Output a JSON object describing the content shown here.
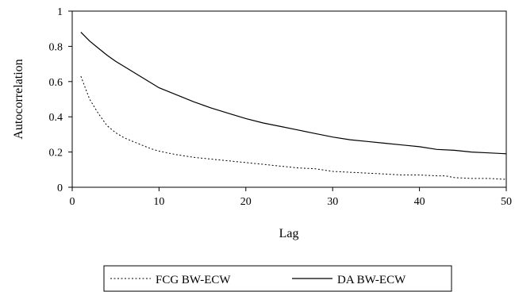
{
  "chart_data": {
    "type": "line",
    "title": "",
    "xlabel": "Lag",
    "ylabel": "Autocorrelation",
    "xlim": [
      0,
      50
    ],
    "ylim": [
      0,
      1
    ],
    "x_ticks": [
      "0",
      "10",
      "20",
      "30",
      "40",
      "50"
    ],
    "y_ticks": [
      "0",
      "0.2",
      "0.4",
      "0.6",
      "0.8",
      "1"
    ],
    "grid": false,
    "legend_position": "bottom",
    "series": [
      {
        "name": "FCG BW-ECW",
        "style": "dotted",
        "color": "#000000",
        "x": [
          1,
          2,
          3,
          4,
          5,
          6,
          7,
          8,
          9,
          10,
          12,
          14,
          16,
          18,
          20,
          22,
          24,
          26,
          28,
          30,
          32,
          34,
          36,
          38,
          40,
          42,
          43,
          44,
          46,
          48,
          50
        ],
        "y": [
          0.63,
          0.5,
          0.42,
          0.35,
          0.31,
          0.28,
          0.26,
          0.24,
          0.22,
          0.205,
          0.185,
          0.17,
          0.16,
          0.15,
          0.14,
          0.13,
          0.12,
          0.11,
          0.105,
          0.09,
          0.085,
          0.08,
          0.075,
          0.07,
          0.07,
          0.065,
          0.065,
          0.055,
          0.05,
          0.05,
          0.045
        ]
      },
      {
        "name": "DA BW-ECW",
        "style": "solid",
        "color": "#000000",
        "x": [
          1,
          2,
          3,
          4,
          5,
          6,
          8,
          10,
          12,
          14,
          16,
          18,
          20,
          22,
          24,
          26,
          28,
          30,
          32,
          34,
          36,
          38,
          40,
          42,
          44,
          46,
          48,
          50
        ],
        "y": [
          0.88,
          0.83,
          0.79,
          0.75,
          0.715,
          0.685,
          0.625,
          0.565,
          0.525,
          0.485,
          0.45,
          0.42,
          0.39,
          0.365,
          0.345,
          0.325,
          0.305,
          0.285,
          0.27,
          0.26,
          0.25,
          0.24,
          0.23,
          0.215,
          0.21,
          0.2,
          0.195,
          0.19
        ]
      }
    ]
  }
}
